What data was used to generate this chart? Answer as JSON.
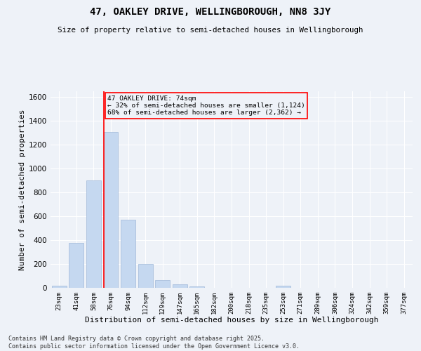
{
  "title": "47, OAKLEY DRIVE, WELLINGBOROUGH, NN8 3JY",
  "subtitle": "Size of property relative to semi-detached houses in Wellingborough",
  "xlabel": "Distribution of semi-detached houses by size in Wellingborough",
  "ylabel": "Number of semi-detached properties",
  "categories": [
    "23sqm",
    "41sqm",
    "58sqm",
    "76sqm",
    "94sqm",
    "112sqm",
    "129sqm",
    "147sqm",
    "165sqm",
    "182sqm",
    "200sqm",
    "218sqm",
    "235sqm",
    "253sqm",
    "271sqm",
    "289sqm",
    "306sqm",
    "324sqm",
    "342sqm",
    "359sqm",
    "377sqm"
  ],
  "values": [
    20,
    380,
    900,
    1310,
    570,
    200,
    65,
    28,
    12,
    0,
    0,
    0,
    0,
    15,
    0,
    0,
    0,
    0,
    0,
    0,
    0
  ],
  "bar_color": "#c5d8f0",
  "bar_edge_color": "#a0b8d8",
  "vline_color": "red",
  "vline_index": 2.575,
  "annotation_title": "47 OAKLEY DRIVE: 74sqm",
  "annotation_line1": "← 32% of semi-detached houses are smaller (1,124)",
  "annotation_line2": "68% of semi-detached houses are larger (2,362) →",
  "ylim": [
    0,
    1650
  ],
  "yticks": [
    0,
    200,
    400,
    600,
    800,
    1000,
    1200,
    1400,
    1600
  ],
  "background_color": "#eef2f8",
  "grid_color": "#ffffff",
  "footer_line1": "Contains HM Land Registry data © Crown copyright and database right 2025.",
  "footer_line2": "Contains public sector information licensed under the Open Government Licence v3.0."
}
